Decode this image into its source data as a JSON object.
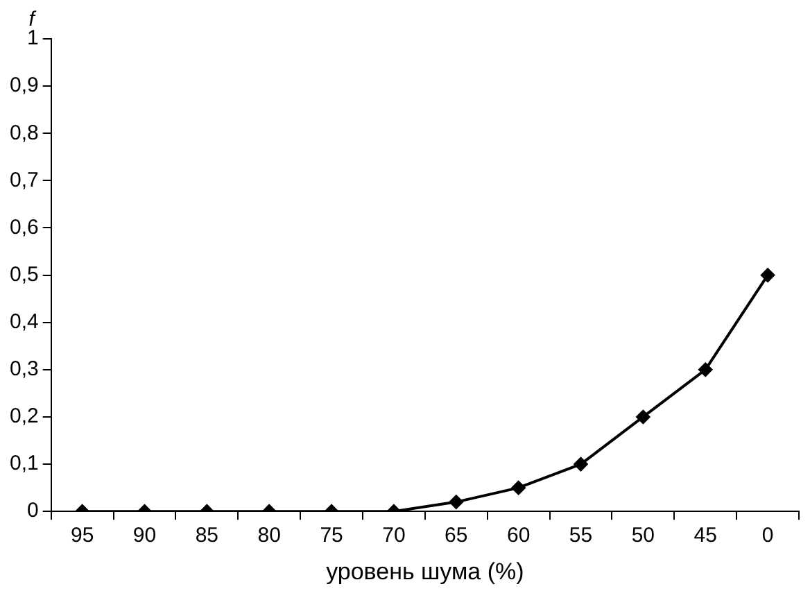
{
  "chart_data": {
    "type": "line",
    "ylabel": "f",
    "xlabel": "уровень шума (%)",
    "categories": [
      "95",
      "90",
      "85",
      "80",
      "75",
      "70",
      "65",
      "60",
      "55",
      "50",
      "45",
      "0"
    ],
    "series": [
      {
        "color": "#000000",
        "values": [
          0,
          0,
          0,
          0,
          0,
          0,
          0.02,
          0.05,
          0.1,
          0.2,
          0.3,
          0.5
        ]
      }
    ],
    "ylim": [
      0,
      1
    ],
    "yticks": [
      0,
      {
        "value": 0.1,
        "label": "0,1"
      },
      {
        "value": 0.2,
        "label": "0,2"
      },
      {
        "value": 0.3,
        "label": "0,3"
      },
      {
        "value": 0.4,
        "label": "0,4"
      },
      {
        "value": 0.5,
        "label": "0,5"
      },
      {
        "value": 0.6,
        "label": "0,6"
      },
      {
        "value": 0.7,
        "label": "0,7"
      },
      {
        "value": 0.8,
        "label": "0,8"
      },
      {
        "value": 0.9,
        "label": "0,9"
      },
      1
    ],
    "grid": false,
    "legend": false,
    "marker": "diamond",
    "line_style": "solid"
  }
}
